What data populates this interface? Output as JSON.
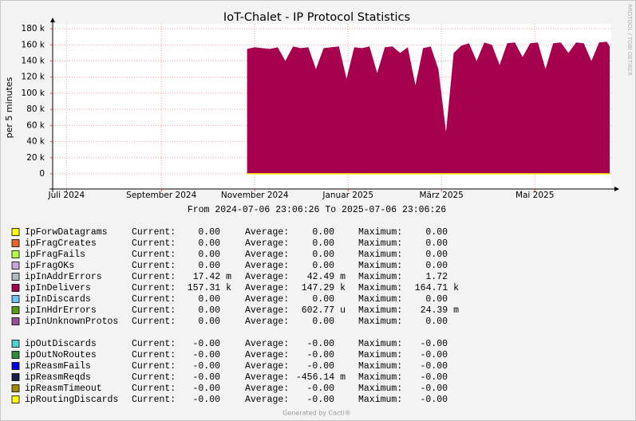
{
  "chart_data": {
    "type": "area",
    "title": "IoT-Chalet - IP Protocol Statistics",
    "y_label": "per 5 minutes",
    "watermark": "RRDTOOL / TOBI OETIKER",
    "range_text": "From 2024-07-06 23:06:26 To 2025-07-06 23:06:26",
    "footer": "Generated by Cacti®",
    "xlim": [
      "2024-07-06 23:06:26",
      "2025-07-06 23:06:26"
    ],
    "xticks": [
      {
        "value": "2024-07-16",
        "label": "Juli 2024"
      },
      {
        "value": "2024-09-16",
        "label": "September 2024"
      },
      {
        "value": "2024-11-16",
        "label": "November 2024"
      },
      {
        "value": "2025-01-16",
        "label": "Januar 2025"
      },
      {
        "value": "2025-03-18",
        "label": "März 2025"
      },
      {
        "value": "2025-05-18",
        "label": "Mai 2025"
      }
    ],
    "ylim": [
      -18800,
      186000
    ],
    "yticks": [
      {
        "value": 0,
        "label": "0"
      },
      {
        "value": 20000,
        "label": "20 k"
      },
      {
        "value": 40000,
        "label": "40 k"
      },
      {
        "value": 60000,
        "label": "60 k"
      },
      {
        "value": 80000,
        "label": "80 k"
      },
      {
        "value": 100000,
        "label": "100 k"
      },
      {
        "value": 120000,
        "label": "120 k"
      },
      {
        "value": 140000,
        "label": "140 k"
      },
      {
        "value": 160000,
        "label": "160 k"
      },
      {
        "value": 180000,
        "label": "180 k"
      }
    ],
    "grid": true,
    "x": [
      "2024-11-11",
      "2024-11-16",
      "2024-11-21",
      "2024-11-26",
      "2024-12-01",
      "2024-12-06",
      "2024-12-11",
      "2024-12-16",
      "2024-12-21",
      "2024-12-26",
      "2024-12-31",
      "2025-01-05",
      "2025-01-10",
      "2025-01-15",
      "2025-01-20",
      "2025-01-25",
      "2025-01-30",
      "2025-02-04",
      "2025-02-09",
      "2025-02-14",
      "2025-02-19",
      "2025-02-24",
      "2025-03-01",
      "2025-03-06",
      "2025-03-11",
      "2025-03-16",
      "2025-03-21",
      "2025-03-26",
      "2025-03-31",
      "2025-04-05",
      "2025-04-10",
      "2025-04-15",
      "2025-04-20",
      "2025-04-25",
      "2025-04-30",
      "2025-05-05",
      "2025-05-10",
      "2025-05-15",
      "2025-05-20",
      "2025-05-25",
      "2025-05-30",
      "2025-06-04",
      "2025-06-09",
      "2025-06-14",
      "2025-06-19",
      "2025-06-24",
      "2025-06-29",
      "2025-07-04",
      "2025-07-06"
    ],
    "series": [
      {
        "name": "ipInDelivers",
        "color": "#a6004f",
        "style": "area",
        "values": [
          155000,
          157000,
          156000,
          155000,
          157000,
          140000,
          158000,
          156000,
          157000,
          130000,
          156000,
          157000,
          158000,
          118000,
          157000,
          156000,
          158000,
          125000,
          157000,
          158000,
          150000,
          157000,
          110000,
          156000,
          158000,
          130000,
          52000,
          150000,
          159000,
          162000,
          140000,
          163000,
          160000,
          135000,
          162000,
          163000,
          145000,
          162000,
          163000,
          130000,
          162000,
          163000,
          150000,
          163000,
          162000,
          140000,
          163000,
          164000,
          158000
        ]
      },
      {
        "name": "IpForwDatagrams",
        "color": "#ffff00",
        "style": "line",
        "values": [
          0,
          0,
          0,
          0,
          0,
          0,
          0,
          0,
          0,
          0,
          0,
          0,
          0,
          0,
          0,
          0,
          0,
          0,
          0,
          0,
          0,
          0,
          0,
          0,
          0,
          0,
          0,
          0,
          0,
          0,
          0,
          0,
          0,
          0,
          0,
          0,
          0,
          0,
          0,
          0,
          0,
          0,
          0,
          0,
          0,
          0,
          0,
          0,
          0
        ]
      }
    ],
    "legend_labels": [
      "Current:",
      "Average:",
      "Maximum:"
    ],
    "legend": [
      {
        "name": "IpForwDatagrams",
        "color": "#ffff00",
        "current": "0.00",
        "average": "0.00",
        "maximum": "0.00"
      },
      {
        "name": "ipFragCreates",
        "color": "#ea642b",
        "current": "0.00",
        "average": "0.00",
        "maximum": "0.00"
      },
      {
        "name": "ipFragFails",
        "color": "#b6ff47",
        "current": "0.00",
        "average": "0.00",
        "maximum": "0.00"
      },
      {
        "name": "ipFragOKs",
        "color": "#c7a5de",
        "current": "0.00",
        "average": "0.00",
        "maximum": "0.00"
      },
      {
        "name": "ipInAddrErrors",
        "color": "#a9bcc0",
        "current": "17.42 m",
        "average": "42.49 m",
        "maximum": "1.72"
      },
      {
        "name": "ipInDelivers",
        "color": "#a6004f",
        "current": "157.31 k",
        "average": "147.29 k",
        "maximum": "164.71 k"
      },
      {
        "name": "ipInDiscards",
        "color": "#6ec4f0",
        "current": "0.00",
        "average": "0.00",
        "maximum": "0.00"
      },
      {
        "name": "ipInHdrErrors",
        "color": "#5a9a16",
        "current": "0.00",
        "average": "602.77 u",
        "maximum": "24.39 m"
      },
      {
        "name": "ipInUnknownProtos",
        "color": "#9b4e9b",
        "current": "0.00",
        "average": "0.00",
        "maximum": "0.00"
      },
      {
        "name": "ipOutDiscards",
        "color": "#4fd1d1",
        "current": "-0.00",
        "average": "-0.00",
        "maximum": "-0.00"
      },
      {
        "name": "ipOutNoRoutes",
        "color": "#2e8b3a",
        "current": "-0.00",
        "average": "-0.00",
        "maximum": "-0.00"
      },
      {
        "name": "ipReasmFails",
        "color": "#0000e0",
        "current": "-0.00",
        "average": "-0.00",
        "maximum": "-0.00"
      },
      {
        "name": "ipReasmReqds",
        "color": "#1e1e4a",
        "current": "-0.00",
        "average": "-456.14 m",
        "maximum": "-0.00"
      },
      {
        "name": "ipReasmTimeout",
        "color": "#a08a00",
        "current": "-0.00",
        "average": "-0.00",
        "maximum": "-0.00"
      },
      {
        "name": "ipRoutingDiscards",
        "color": "#ffff00",
        "current": "-0.00",
        "average": "-0.00",
        "maximum": "-0.00"
      }
    ]
  }
}
